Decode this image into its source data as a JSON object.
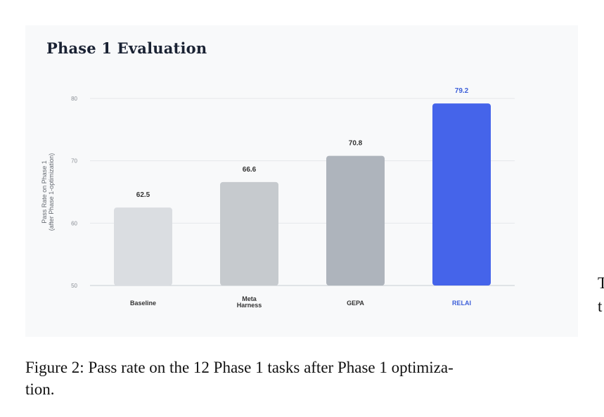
{
  "chart_data": {
    "type": "bar",
    "title": "Phase 1 Evaluation",
    "ylabel": [
      "Pass Rate on Phase 1",
      "(after Phase 1-optimization)"
    ],
    "xlabel": "",
    "ylim": [
      50,
      80
    ],
    "yticks": [
      50,
      60,
      70,
      80
    ],
    "grid": true,
    "categories": [
      [
        "Baseline"
      ],
      [
        "Meta",
        "Harness"
      ],
      [
        "GEPA"
      ],
      [
        "RELAI"
      ]
    ],
    "values": [
      62.5,
      66.6,
      70.8,
      79.2
    ],
    "value_labels": [
      "62.5",
      "66.6",
      "70.8",
      "79.2"
    ],
    "colors": [
      "#dadde1",
      "#c6cace",
      "#aeb4bc",
      "#4564ea"
    ],
    "label_colors": [
      "#333333",
      "#333333",
      "#333333",
      "#3d5fd9"
    ],
    "value_label_colors": [
      "#333333",
      "#333333",
      "#333333",
      "#3d5fd9"
    ]
  },
  "caption": "Figure 2: Pass rate on the 12 Phase 1 tasks after Phase 1 optimiza- tion.",
  "caption_lines": [
    "Figure 2: Pass rate on the 12 Phase 1 tasks after Phase 1 optimiza-",
    "tion."
  ],
  "margin_text": [
    "T",
    "t"
  ]
}
